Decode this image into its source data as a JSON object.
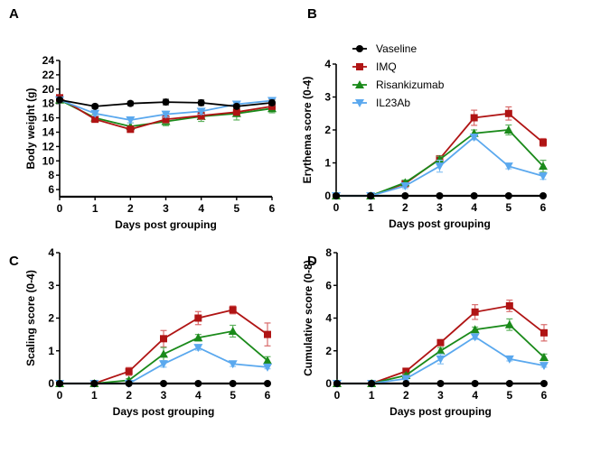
{
  "legend": {
    "placement": "top-right panel B",
    "entries": [
      {
        "name": "Vaseline",
        "color": "#000000",
        "marker": "circle"
      },
      {
        "name": "IMQ",
        "color": "#b01414",
        "marker": "square"
      },
      {
        "name": "Risankizumab",
        "color": "#1a8a1a",
        "marker": "triangle-up"
      },
      {
        "name": "IL23Ab",
        "color": "#5aa8ee",
        "marker": "triangle-down"
      }
    ]
  },
  "chart_data": [
    {
      "panel": "A",
      "type": "line",
      "title": "",
      "xlabel": "Days post grouping",
      "ylabel": "Body weight (g)",
      "x": [
        0,
        1,
        2,
        3,
        4,
        5,
        6
      ],
      "xticks": [
        "0",
        "1",
        "2",
        "3",
        "4",
        "5",
        "6"
      ],
      "ylim": [
        5,
        24
      ],
      "yticks": [
        6,
        8,
        10,
        12,
        14,
        16,
        18,
        20,
        22,
        24
      ],
      "grid": false,
      "series": [
        {
          "name": "Vaseline",
          "values": [
            18.5,
            17.6,
            18.0,
            18.2,
            18.1,
            17.6,
            18.1
          ],
          "err": [
            0.3,
            0.3,
            0.3,
            0.4,
            0.4,
            0.3,
            0.4
          ]
        },
        {
          "name": "IMQ",
          "values": [
            18.8,
            15.8,
            14.4,
            15.8,
            16.3,
            16.8,
            17.6
          ],
          "err": [
            0.4,
            0.4,
            0.4,
            0.5,
            0.5,
            0.4,
            0.4
          ]
        },
        {
          "name": "Risankizumab",
          "values": [
            18.5,
            16.0,
            14.8,
            15.5,
            16.2,
            16.6,
            17.3
          ],
          "err": [
            0.3,
            0.5,
            0.5,
            0.6,
            0.7,
            0.9,
            0.6
          ]
        },
        {
          "name": "IL23Ab",
          "values": [
            18.5,
            16.6,
            15.7,
            16.5,
            16.9,
            17.9,
            18.4
          ],
          "err": [
            0.3,
            0.3,
            0.4,
            0.4,
            0.4,
            0.3,
            0.3
          ]
        }
      ]
    },
    {
      "panel": "B",
      "type": "line",
      "title": "",
      "xlabel": "Days post grouping",
      "ylabel": "Erythema score (0-4)",
      "x": [
        0,
        1,
        2,
        3,
        4,
        5,
        6
      ],
      "xticks": [
        "0",
        "1",
        "2",
        "3",
        "4",
        "5",
        "6"
      ],
      "ylim": [
        0,
        4
      ],
      "yticks": [
        0,
        1,
        2,
        3,
        4
      ],
      "grid": false,
      "series": [
        {
          "name": "Vaseline",
          "values": [
            0,
            0,
            0,
            0,
            0,
            0,
            0
          ],
          "err": [
            0,
            0,
            0,
            0,
            0,
            0,
            0
          ]
        },
        {
          "name": "IMQ",
          "values": [
            0,
            0,
            0.37,
            1.12,
            2.37,
            2.5,
            1.62
          ],
          "err": [
            0,
            0,
            0.1,
            0.1,
            0.23,
            0.2,
            0.12
          ]
        },
        {
          "name": "Risankizumab",
          "values": [
            0,
            0,
            0.4,
            1.1,
            1.9,
            2.0,
            0.9
          ],
          "err": [
            0,
            0,
            0.08,
            0.1,
            0.1,
            0.15,
            0.18
          ]
        },
        {
          "name": "IL23Ab",
          "values": [
            0,
            0,
            0.3,
            0.9,
            1.78,
            0.9,
            0.6
          ],
          "err": [
            0,
            0,
            0.08,
            0.18,
            0.08,
            0.08,
            0.1
          ]
        }
      ]
    },
    {
      "panel": "C",
      "type": "line",
      "title": "",
      "xlabel": "Days post grouping",
      "ylabel": "Scaling score (0-4)",
      "x": [
        0,
        1,
        2,
        3,
        4,
        5,
        6
      ],
      "xticks": [
        "0",
        "1",
        "2",
        "3",
        "4",
        "5",
        "6"
      ],
      "ylim": [
        0,
        4
      ],
      "yticks": [
        0,
        1,
        2,
        3,
        4
      ],
      "grid": false,
      "series": [
        {
          "name": "Vaseline",
          "values": [
            0,
            0,
            0,
            0,
            0,
            0,
            0
          ],
          "err": [
            0,
            0,
            0,
            0,
            0,
            0,
            0
          ]
        },
        {
          "name": "IMQ",
          "values": [
            0,
            0,
            0.37,
            1.37,
            2.0,
            2.25,
            1.5
          ],
          "err": [
            0,
            0,
            0.12,
            0.25,
            0.2,
            0.12,
            0.35
          ]
        },
        {
          "name": "Risankizumab",
          "values": [
            0,
            0,
            0.1,
            0.9,
            1.4,
            1.6,
            0.7
          ],
          "err": [
            0,
            0,
            0.05,
            0.2,
            0.1,
            0.18,
            0.12
          ]
        },
        {
          "name": "IL23Ab",
          "values": [
            0,
            0,
            0,
            0.6,
            1.1,
            0.6,
            0.5
          ],
          "err": [
            0,
            0,
            0,
            0.1,
            0.08,
            0.08,
            0.05
          ]
        }
      ]
    },
    {
      "panel": "D",
      "type": "line",
      "title": "",
      "xlabel": "Days post grouping",
      "ylabel": "Cumulative score (0-8)",
      "x": [
        0,
        1,
        2,
        3,
        4,
        5,
        6
      ],
      "xticks": [
        "0",
        "1",
        "2",
        "3",
        "4",
        "5",
        "6"
      ],
      "ylim": [
        0,
        8
      ],
      "yticks": [
        0,
        2,
        4,
        6,
        8
      ],
      "grid": false,
      "series": [
        {
          "name": "Vaseline",
          "values": [
            0,
            0,
            0,
            0,
            0,
            0,
            0
          ],
          "err": [
            0,
            0,
            0,
            0,
            0,
            0,
            0
          ]
        },
        {
          "name": "IMQ",
          "values": [
            0,
            0,
            0.75,
            2.5,
            4.37,
            4.75,
            3.1
          ],
          "err": [
            0,
            0,
            0.15,
            0.15,
            0.45,
            0.35,
            0.5
          ]
        },
        {
          "name": "Risankizumab",
          "values": [
            0,
            0,
            0.5,
            2.0,
            3.3,
            3.6,
            1.6
          ],
          "err": [
            0,
            0,
            0.1,
            0.2,
            0.15,
            0.35,
            0.2
          ]
        },
        {
          "name": "IL23Ab",
          "values": [
            0,
            0,
            0.3,
            1.5,
            2.85,
            1.5,
            1.1
          ],
          "err": [
            0,
            0,
            0.1,
            0.3,
            0.15,
            0.12,
            0.1
          ]
        }
      ]
    }
  ]
}
